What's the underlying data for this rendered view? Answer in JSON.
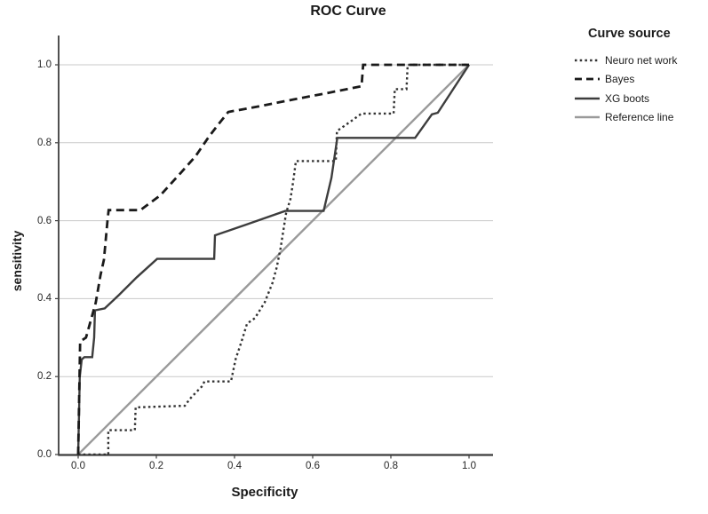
{
  "window": {
    "background": "#ffffff"
  },
  "chart_data": {
    "type": "line",
    "title": "ROC Curve",
    "xlabel": "Specificity",
    "ylabel": "sensitivity",
    "xlim": [
      0.0,
      1.0
    ],
    "ylim": [
      0.0,
      1.0
    ],
    "xtick_labels": [
      "0.0",
      "0.2",
      "0.4",
      "0.6",
      "0.8",
      "1.0"
    ],
    "ytick_labels": [
      "0.0",
      "0.2",
      "0.4",
      "0.6",
      "0.8",
      "1.0"
    ],
    "xticks": [
      0.0,
      0.2,
      0.4,
      0.6,
      0.8,
      1.0
    ],
    "yticks": [
      0.0,
      0.2,
      0.4,
      0.6,
      0.8,
      1.0
    ],
    "grid": "horizontal-only",
    "gridline_color": "#c9c9c9",
    "axis_color": "#3c3c3c",
    "legend_title": "Curve source",
    "legend_position": "right",
    "series": [
      {
        "name": "Neuro net work",
        "style": "dotted",
        "color": "#333333",
        "points": [
          [
            0,
            0
          ],
          [
            0.077,
            0
          ],
          [
            0.077,
            0.0625
          ],
          [
            0.145,
            0.0625
          ],
          [
            0.147,
            0.121
          ],
          [
            0.273,
            0.125
          ],
          [
            0.285,
            0.142
          ],
          [
            0.305,
            0.163
          ],
          [
            0.318,
            0.176
          ],
          [
            0.323,
            0.1875
          ],
          [
            0.391,
            0.1875
          ],
          [
            0.403,
            0.245
          ],
          [
            0.418,
            0.29
          ],
          [
            0.432,
            0.336
          ],
          [
            0.452,
            0.35
          ],
          [
            0.477,
            0.39
          ],
          [
            0.497,
            0.44
          ],
          [
            0.508,
            0.48
          ],
          [
            0.518,
            0.53
          ],
          [
            0.525,
            0.575
          ],
          [
            0.532,
            0.62
          ],
          [
            0.543,
            0.655
          ],
          [
            0.55,
            0.7
          ],
          [
            0.557,
            0.753
          ],
          [
            0.659,
            0.753
          ],
          [
            0.662,
            0.83
          ],
          [
            0.695,
            0.853
          ],
          [
            0.725,
            0.875
          ],
          [
            0.807,
            0.875
          ],
          [
            0.81,
            0.9375
          ],
          [
            0.84,
            0.9375
          ],
          [
            0.843,
            1.0
          ],
          [
            1,
            1
          ]
        ]
      },
      {
        "name": "Bayes",
        "style": "dashed",
        "color": "#1a1a1a",
        "points": [
          [
            0,
            0
          ],
          [
            0.005,
            0.29
          ],
          [
            0.02,
            0.3
          ],
          [
            0.045,
            0.39
          ],
          [
            0.057,
            0.46
          ],
          [
            0.066,
            0.5
          ],
          [
            0.075,
            0.6
          ],
          [
            0.078,
            0.627
          ],
          [
            0.159,
            0.627
          ],
          [
            0.21,
            0.665
          ],
          [
            0.26,
            0.72
          ],
          [
            0.3,
            0.765
          ],
          [
            0.334,
            0.815
          ],
          [
            0.357,
            0.845
          ],
          [
            0.384,
            0.879
          ],
          [
            0.46,
            0.893
          ],
          [
            0.55,
            0.911
          ],
          [
            0.64,
            0.928
          ],
          [
            0.725,
            0.945
          ],
          [
            0.729,
            1.0
          ],
          [
            1,
            1
          ]
        ]
      },
      {
        "name": "XG boots",
        "style": "solid",
        "color": "#3d3d3d",
        "points": [
          [
            0,
            0
          ],
          [
            0.004,
            0.2
          ],
          [
            0.009,
            0.244
          ],
          [
            0.016,
            0.25
          ],
          [
            0.036,
            0.25
          ],
          [
            0.041,
            0.3
          ],
          [
            0.043,
            0.37
          ],
          [
            0.068,
            0.375
          ],
          [
            0.105,
            0.41
          ],
          [
            0.15,
            0.455
          ],
          [
            0.202,
            0.502
          ],
          [
            0.348,
            0.502
          ],
          [
            0.35,
            0.5625
          ],
          [
            0.43,
            0.59
          ],
          [
            0.53,
            0.625
          ],
          [
            0.628,
            0.625
          ],
          [
            0.648,
            0.71
          ],
          [
            0.663,
            0.8125
          ],
          [
            0.862,
            0.8125
          ],
          [
            0.905,
            0.873
          ],
          [
            0.92,
            0.877
          ],
          [
            1,
            1
          ]
        ]
      },
      {
        "name": "Reference line",
        "style": "solid",
        "color": "#9a9a9a",
        "points": [
          [
            0,
            0
          ],
          [
            1,
            1
          ]
        ]
      }
    ]
  }
}
